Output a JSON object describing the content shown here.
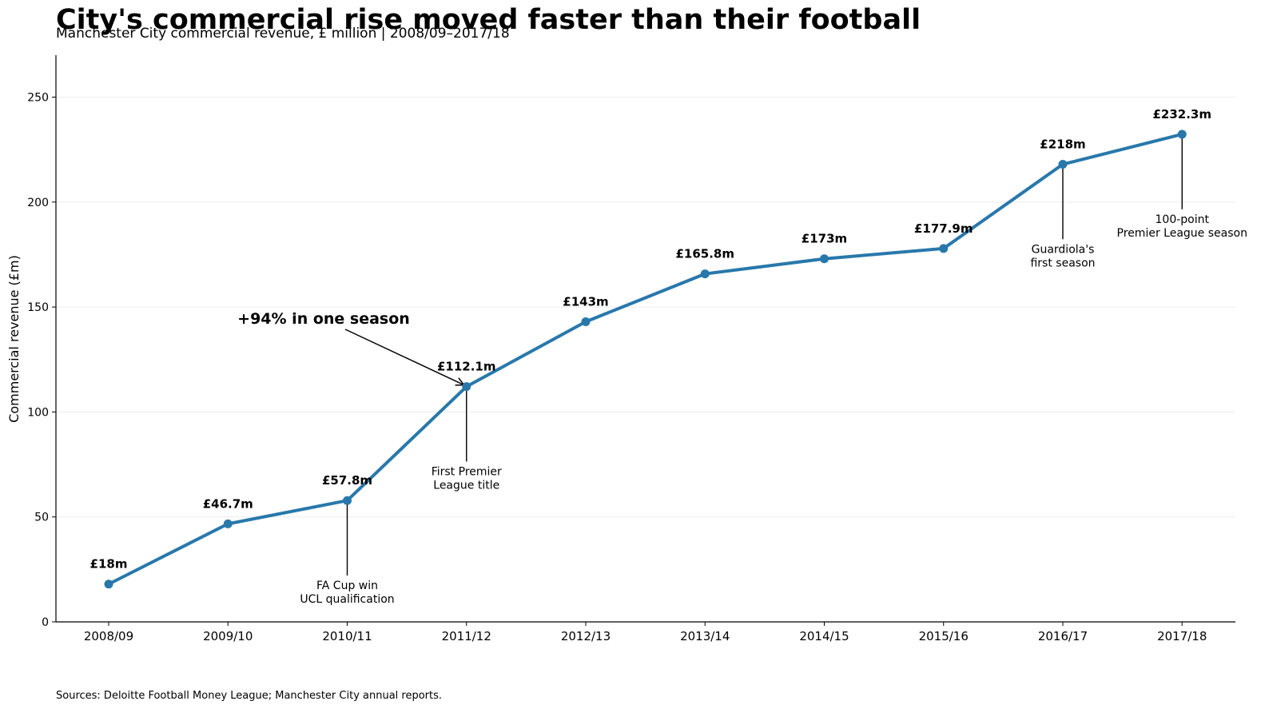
{
  "chart_data": {
    "type": "line",
    "title": "City's commercial rise moved faster than their football",
    "subtitle": "Manchester City commercial revenue, £ million | 2008/09–2017/18",
    "xlabel": "",
    "ylabel": "Commercial revenue (£m)",
    "ylim": [
      0,
      270
    ],
    "yticks": [
      0,
      50,
      100,
      150,
      200,
      250
    ],
    "grid": "horizontal",
    "categories": [
      "2008/09",
      "2009/10",
      "2010/11",
      "2011/12",
      "2012/13",
      "2013/14",
      "2014/15",
      "2015/16",
      "2016/17",
      "2017/18"
    ],
    "series": [
      {
        "values": [
          18,
          46.7,
          57.8,
          112.1,
          143,
          165.8,
          173,
          177.9,
          218,
          232.3
        ],
        "color": "#2878ab"
      }
    ],
    "data_labels": [
      "£18m",
      "£46.7m",
      "£57.8m",
      "£112.1m",
      "£143m",
      "£165.8m",
      "£173m",
      "£177.9m",
      "£218m",
      "£232.3m"
    ],
    "annotations": [
      {
        "category": "2010/11",
        "lines": [
          "FA Cup win",
          "UCL qualification"
        ]
      },
      {
        "category": "2011/12",
        "lines": [
          "First Premier",
          "League title"
        ]
      },
      {
        "category": "2016/17",
        "lines": [
          "Guardiola's",
          "first season"
        ]
      },
      {
        "category": "2017/18",
        "lines": [
          "100-point",
          "Premier League season"
        ]
      }
    ],
    "callout": {
      "text": "+94% in one season",
      "target_category": "2011/12"
    },
    "source": "Sources: Deloitte Football Money League; Manchester City annual reports."
  }
}
